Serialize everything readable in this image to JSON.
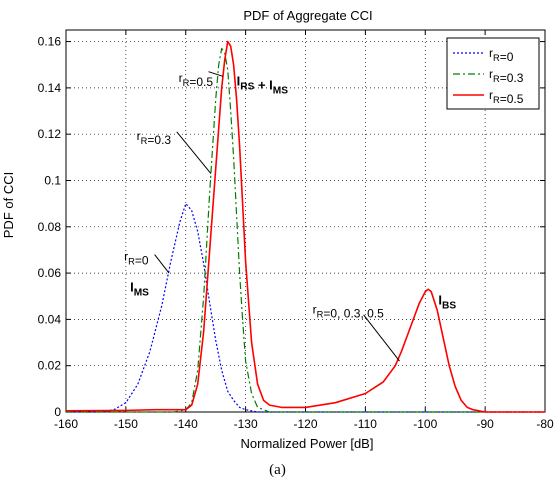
{
  "caption": "(a)",
  "chart_data": {
    "type": "line",
    "title": "PDF of Aggregate CCI",
    "xlabel": "Normalized Power [dB]",
    "ylabel": "PDF of CCI",
    "xlim": [
      -160,
      -80
    ],
    "ylim": [
      0,
      0.165
    ],
    "xticks": [
      -160,
      -150,
      -140,
      -130,
      -120,
      -110,
      -100,
      -90,
      -80
    ],
    "yticks": [
      0,
      0.02,
      0.04,
      0.06,
      0.08,
      0.1,
      0.12,
      0.14,
      0.16
    ],
    "xtick_labels": [
      "-160",
      "-150",
      "-140",
      "-130",
      "-120",
      "-110",
      "-100",
      "-90",
      "-80"
    ],
    "ytick_labels": [
      "0",
      "0.02",
      "0.04",
      "0.06",
      "0.08",
      "0.1",
      "0.12",
      "0.14",
      "0.16"
    ],
    "grid": true,
    "legend_position": "top-right",
    "series": [
      {
        "name": "r_R=0",
        "legend_main": "r",
        "legend_sub": "R",
        "legend_tail": "=0",
        "color": "#0000ff",
        "style": "dotted",
        "x": [
          -160,
          -154,
          -152,
          -150,
          -148,
          -146,
          -144,
          -142.5,
          -141,
          -140,
          -139,
          -138,
          -137,
          -136,
          -135,
          -134,
          -133,
          -132,
          -131,
          -130,
          -128,
          -126,
          -124,
          -120,
          -100,
          -80
        ],
        "y": [
          0,
          0,
          0.001,
          0.004,
          0.012,
          0.026,
          0.046,
          0.065,
          0.082,
          0.09,
          0.087,
          0.078,
          0.064,
          0.047,
          0.031,
          0.018,
          0.009,
          0.005,
          0.002,
          0.001,
          0,
          0,
          0,
          0,
          0,
          0
        ]
      },
      {
        "name": "r_R=0.3",
        "legend_main": "r",
        "legend_sub": "R",
        "legend_tail": "=0.3",
        "color": "#008000",
        "style": "dashdot",
        "x": [
          -160,
          -142,
          -140,
          -139,
          -138,
          -137,
          -136,
          -135,
          -134.5,
          -134,
          -133.5,
          -133,
          -132.5,
          -132,
          -131.5,
          -131,
          -130.5,
          -130,
          -129,
          -128,
          -126,
          -120,
          -100,
          -80
        ],
        "y": [
          0,
          0,
          0.001,
          0.004,
          0.018,
          0.05,
          0.095,
          0.135,
          0.15,
          0.157,
          0.155,
          0.148,
          0.13,
          0.11,
          0.085,
          0.06,
          0.04,
          0.022,
          0.008,
          0.002,
          0,
          0,
          0,
          0
        ]
      },
      {
        "name": "r_R=0.5",
        "legend_main": "r",
        "legend_sub": "R",
        "legend_tail": "=0.5",
        "color": "#ff0000",
        "style": "solid",
        "x": [
          -160,
          -150,
          -145,
          -140,
          -139,
          -138,
          -137,
          -136,
          -135,
          -134,
          -133.5,
          -133,
          -132.5,
          -132,
          -131.5,
          -131,
          -130.5,
          -130,
          -129,
          -128,
          -127,
          -126,
          -124,
          -120,
          -115,
          -110,
          -107,
          -105,
          -104,
          -103,
          -102,
          -101,
          -100,
          -99.5,
          -99,
          -98,
          -97,
          -96,
          -95,
          -94,
          -93,
          -92,
          -90,
          -85,
          -80
        ],
        "y": [
          0.0005,
          0.0007,
          0.001,
          0.001,
          0.003,
          0.012,
          0.035,
          0.07,
          0.105,
          0.14,
          0.152,
          0.16,
          0.158,
          0.15,
          0.135,
          0.115,
          0.09,
          0.065,
          0.03,
          0.012,
          0.005,
          0.003,
          0.002,
          0.002,
          0.004,
          0.008,
          0.013,
          0.02,
          0.026,
          0.033,
          0.04,
          0.047,
          0.052,
          0.053,
          0.052,
          0.044,
          0.032,
          0.02,
          0.011,
          0.005,
          0.002,
          0.001,
          0,
          0,
          0
        ]
      }
    ],
    "annotations": [
      {
        "id": "irs-ims",
        "parts": [
          [
            "I",
            "RS"
          ],
          [
            " + I",
            "MS"
          ]
        ],
        "x": -131.5,
        "y": 0.141,
        "bold": true
      },
      {
        "id": "ims",
        "parts": [
          [
            "I",
            "MS"
          ]
        ],
        "x": -149.3,
        "y": 0.052,
        "bold": true
      },
      {
        "id": "ibs",
        "parts": [
          [
            "I",
            "BS"
          ]
        ],
        "x": -97.8,
        "y": 0.0465,
        "bold": true
      },
      {
        "id": "rr-05",
        "parts": [
          [
            "r",
            "R"
          ],
          [
            "=0.5",
            ""
          ]
        ],
        "x": -141.2,
        "y": 0.1425,
        "bold": false
      },
      {
        "id": "rr-03",
        "parts": [
          [
            "r",
            "R"
          ],
          [
            "=0.3",
            ""
          ]
        ],
        "x": -148.2,
        "y": 0.1175,
        "bold": false
      },
      {
        "id": "rr-0",
        "parts": [
          [
            "r",
            "R"
          ],
          [
            "=0",
            ""
          ]
        ],
        "x": -150.3,
        "y": 0.0655,
        "bold": false
      },
      {
        "id": "rr-all",
        "parts": [
          [
            "r",
            "R"
          ],
          [
            "=0, 0.3, 0.5",
            ""
          ]
        ],
        "x": -118.8,
        "y": 0.0425,
        "bold": false
      }
    ],
    "arrows": [
      {
        "id": "arrow-05",
        "from": [
          -136.2,
          0.147
        ],
        "to": [
          -133.8,
          0.145
        ]
      },
      {
        "id": "arrow-03",
        "from": [
          -141.5,
          0.121
        ],
        "to": [
          -135.8,
          0.103
        ]
      },
      {
        "id": "arrow-0",
        "from": [
          -145.2,
          0.068
        ],
        "to": [
          -142.8,
          0.06
        ]
      },
      {
        "id": "arrow-all",
        "from": [
          -110.3,
          0.042
        ],
        "to": [
          -104.3,
          0.022
        ]
      }
    ]
  }
}
